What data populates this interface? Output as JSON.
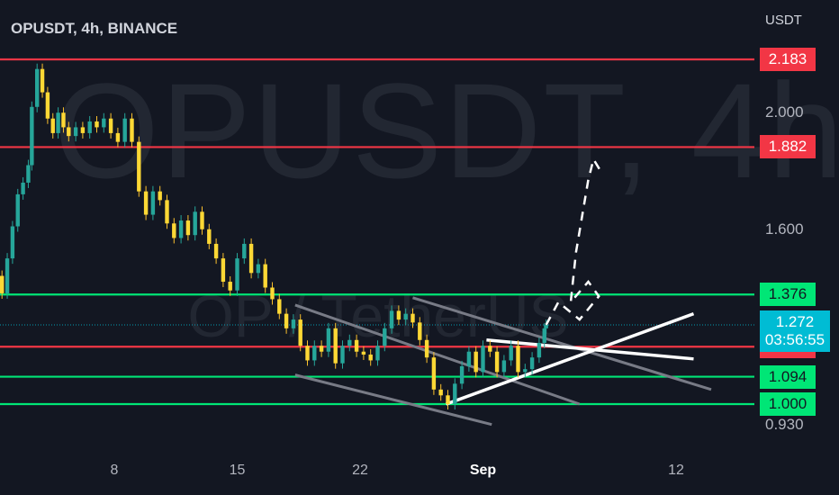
{
  "header": {
    "symbol": "OPUSDT, 4h, BINANCE"
  },
  "watermark": {
    "main": "OPUSDT, 4h",
    "sub": "OP / TetherUS"
  },
  "price_axis": {
    "unit": "USDT",
    "ticks": [
      {
        "value": 2.0,
        "label": "2.000"
      },
      {
        "value": 1.6,
        "label": "1.600"
      },
      {
        "value": 0.93,
        "label": "0.930"
      }
    ]
  },
  "levels": [
    {
      "value": 2.183,
      "label": "2.183",
      "color": "#f23645"
    },
    {
      "value": 1.882,
      "label": "1.882",
      "color": "#f23645"
    },
    {
      "value": 1.376,
      "label": "1.376",
      "color": "#00e676"
    },
    {
      "value": 1.197,
      "label": "1.197",
      "color": "#f23645"
    },
    {
      "value": 1.094,
      "label": "1.094",
      "color": "#00e676"
    },
    {
      "value": 1.0,
      "label": "1.000",
      "color": "#00e676"
    }
  ],
  "current": {
    "price": "1.272",
    "countdown": "03:56:55",
    "color": "#00bcd4"
  },
  "time_axis": {
    "ticks": [
      {
        "label": "8",
        "day": 8
      },
      {
        "label": "15",
        "day": 15
      },
      {
        "label": "22",
        "day": 22
      },
      {
        "label": "Sep",
        "day": 29,
        "bold": true
      },
      {
        "label": "12",
        "day": 40
      }
    ]
  },
  "chart_data": {
    "type": "candlestick",
    "title": "OPUSDT, 4h, BINANCE",
    "ylabel": "USDT",
    "ylim": [
      0.9,
      2.28
    ],
    "x_unit": "day",
    "series": [
      {
        "name": "OPUSDT",
        "kind": "close_path",
        "points": [
          [
            1.0,
            1.55
          ],
          [
            1.3,
            1.44
          ],
          [
            1.6,
            1.38
          ],
          [
            1.9,
            1.5
          ],
          [
            2.2,
            1.61
          ],
          [
            2.5,
            1.72
          ],
          [
            2.8,
            1.76
          ],
          [
            3.1,
            1.82
          ],
          [
            3.3,
            2.02
          ],
          [
            3.6,
            2.15
          ],
          [
            3.9,
            2.07
          ],
          [
            4.2,
            1.98
          ],
          [
            4.5,
            1.93
          ],
          [
            4.8,
            2.0
          ],
          [
            5.1,
            1.95
          ],
          [
            5.4,
            1.92
          ],
          [
            5.8,
            1.95
          ],
          [
            6.2,
            1.93
          ],
          [
            6.6,
            1.97
          ],
          [
            7.0,
            1.95
          ],
          [
            7.4,
            1.98
          ],
          [
            7.8,
            1.93
          ],
          [
            8.2,
            1.9
          ],
          [
            8.6,
            1.98
          ],
          [
            9.0,
            1.9
          ],
          [
            9.4,
            1.73
          ],
          [
            9.8,
            1.65
          ],
          [
            10.2,
            1.73
          ],
          [
            10.6,
            1.7
          ],
          [
            11.0,
            1.62
          ],
          [
            11.4,
            1.57
          ],
          [
            11.8,
            1.63
          ],
          [
            12.2,
            1.58
          ],
          [
            12.6,
            1.66
          ],
          [
            13.0,
            1.6
          ],
          [
            13.4,
            1.55
          ],
          [
            13.8,
            1.5
          ],
          [
            14.2,
            1.42
          ],
          [
            14.6,
            1.39
          ],
          [
            15.0,
            1.5
          ],
          [
            15.4,
            1.55
          ],
          [
            15.8,
            1.45
          ],
          [
            16.2,
            1.48
          ],
          [
            16.6,
            1.4
          ],
          [
            17.0,
            1.36
          ],
          [
            17.4,
            1.31
          ],
          [
            17.8,
            1.26
          ],
          [
            18.2,
            1.29
          ],
          [
            18.6,
            1.2
          ],
          [
            19.0,
            1.15
          ],
          [
            19.4,
            1.2
          ],
          [
            19.8,
            1.18
          ],
          [
            20.2,
            1.26
          ],
          [
            20.6,
            1.14
          ],
          [
            21.0,
            1.2
          ],
          [
            21.4,
            1.22
          ],
          [
            21.8,
            1.18
          ],
          [
            22.2,
            1.17
          ],
          [
            22.6,
            1.15
          ],
          [
            23.0,
            1.2
          ],
          [
            23.4,
            1.26
          ],
          [
            23.8,
            1.32
          ],
          [
            24.2,
            1.29
          ],
          [
            24.6,
            1.31
          ],
          [
            25.0,
            1.28
          ],
          [
            25.4,
            1.22
          ],
          [
            25.8,
            1.16
          ],
          [
            26.2,
            1.05
          ],
          [
            26.6,
            1.03
          ],
          [
            27.0,
            1.0
          ],
          [
            27.4,
            1.07
          ],
          [
            27.8,
            1.13
          ],
          [
            28.2,
            1.18
          ],
          [
            28.6,
            1.11
          ],
          [
            29.0,
            1.2
          ],
          [
            29.4,
            1.18
          ],
          [
            29.8,
            1.11
          ],
          [
            30.2,
            1.15
          ],
          [
            30.6,
            1.2
          ],
          [
            31.0,
            1.11
          ],
          [
            31.4,
            1.12
          ],
          [
            31.8,
            1.16
          ],
          [
            32.2,
            1.21
          ],
          [
            32.5,
            1.26
          ],
          [
            32.6,
            1.272
          ]
        ]
      }
    ],
    "levels": [
      2.183,
      1.882,
      1.376,
      1.197,
      1.094,
      1.0
    ],
    "current_price": 1.272,
    "countdown": "03:56:55",
    "trendlines": [
      {
        "from": [
          18.3,
          1.34
        ],
        "to": [
          34.5,
          1.0
        ],
        "style": "gray-channel"
      },
      {
        "from": [
          18.3,
          1.1
        ],
        "to": [
          29.5,
          0.93
        ],
        "style": "gray-channel"
      },
      {
        "from": [
          25.0,
          1.365
        ],
        "to": [
          42.0,
          1.05
        ],
        "style": "gray-channel"
      },
      {
        "from": [
          26.9,
          1.0
        ],
        "to": [
          41.0,
          1.31
        ],
        "style": "white-support"
      },
      {
        "from": [
          29.2,
          1.22
        ],
        "to": [
          41.0,
          1.155
        ],
        "style": "white-resistance"
      }
    ],
    "projection": [
      [
        32.6,
        1.272
      ],
      [
        33.3,
        1.35
      ],
      [
        34.5,
        1.29
      ],
      [
        35.6,
        1.37
      ],
      [
        35.0,
        1.42
      ],
      [
        34.0,
        1.35
      ],
      [
        34.3,
        1.52
      ],
      [
        35.0,
        1.77
      ],
      [
        35.3,
        1.84
      ],
      [
        35.8,
        1.79
      ]
    ],
    "x_ticks": [
      "8",
      "15",
      "22",
      "Sep",
      "12"
    ],
    "grid": false
  }
}
